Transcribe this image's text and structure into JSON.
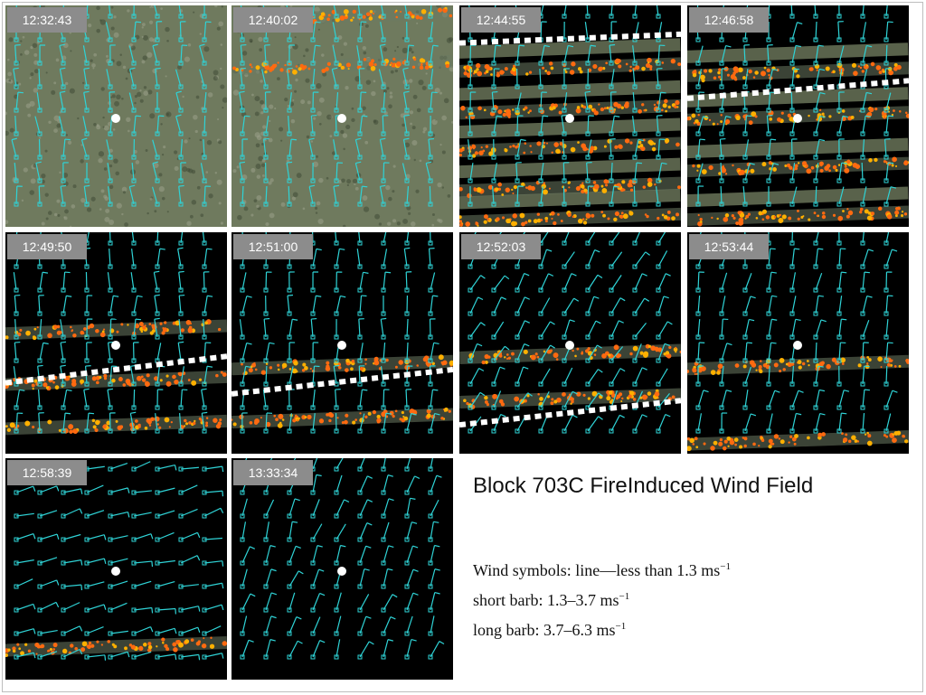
{
  "title": "Block 703C FireInduced Wind Field",
  "panels": [
    {
      "time": "12:32:43",
      "phase": "pre",
      "fire": [],
      "line": null,
      "rot": -5
    },
    {
      "time": "12:40:02",
      "phase": "early",
      "fire": [
        0.05,
        0.27
      ],
      "line": null,
      "rot": -3
    },
    {
      "time": "12:44:55",
      "phase": "veg",
      "fire": [
        0.28,
        0.47,
        0.64,
        0.82,
        0.96
      ],
      "line": [
        0.17,
        0.13
      ],
      "rot": 2
    },
    {
      "time": "12:46:58",
      "phase": "veg",
      "fire": [
        0.3,
        0.5,
        0.73,
        0.95
      ],
      "line": [
        0.42,
        0.34
      ],
      "rot": 5
    },
    {
      "time": "12:49:50",
      "phase": "burnt",
      "fire": [
        0.44,
        0.67,
        0.87
      ],
      "line": [
        0.68,
        0.56
      ],
      "rot": 0
    },
    {
      "time": "12:51:00",
      "phase": "burnt",
      "fire": [
        0.6,
        0.84
      ],
      "line": [
        0.73,
        0.62
      ],
      "rot": 3
    },
    {
      "time": "12:52:03",
      "phase": "burnt",
      "fire": [
        0.55,
        0.75
      ],
      "line": [
        0.87,
        0.76
      ],
      "rot": 28
    },
    {
      "time": "12:53:44",
      "phase": "burnt",
      "fire": [
        0.6,
        0.94
      ],
      "line": null,
      "rot": 10
    },
    {
      "time": "12:58:39",
      "phase": "burnt",
      "fire": [
        0.85
      ],
      "line": null,
      "rot": 75
    },
    {
      "time": "13:33:34",
      "phase": "burnt",
      "fire": [],
      "line": null,
      "rot": 20
    }
  ],
  "legend": {
    "line1_a": "Wind symbols: line",
    "dash": "—",
    "line1_b": "less than 1.3 ms",
    "line2": "short barb: 1.3–3.7 ms",
    "line3": "long barb: 3.7–6.3 ms",
    "sup": "−1"
  },
  "colors": {
    "vector": "#2fd3d6",
    "vegetation": "#6f7a5e",
    "burnt": "#000000",
    "fire": "#ff6a10",
    "timestamp_bg": "#8c8c8c"
  }
}
